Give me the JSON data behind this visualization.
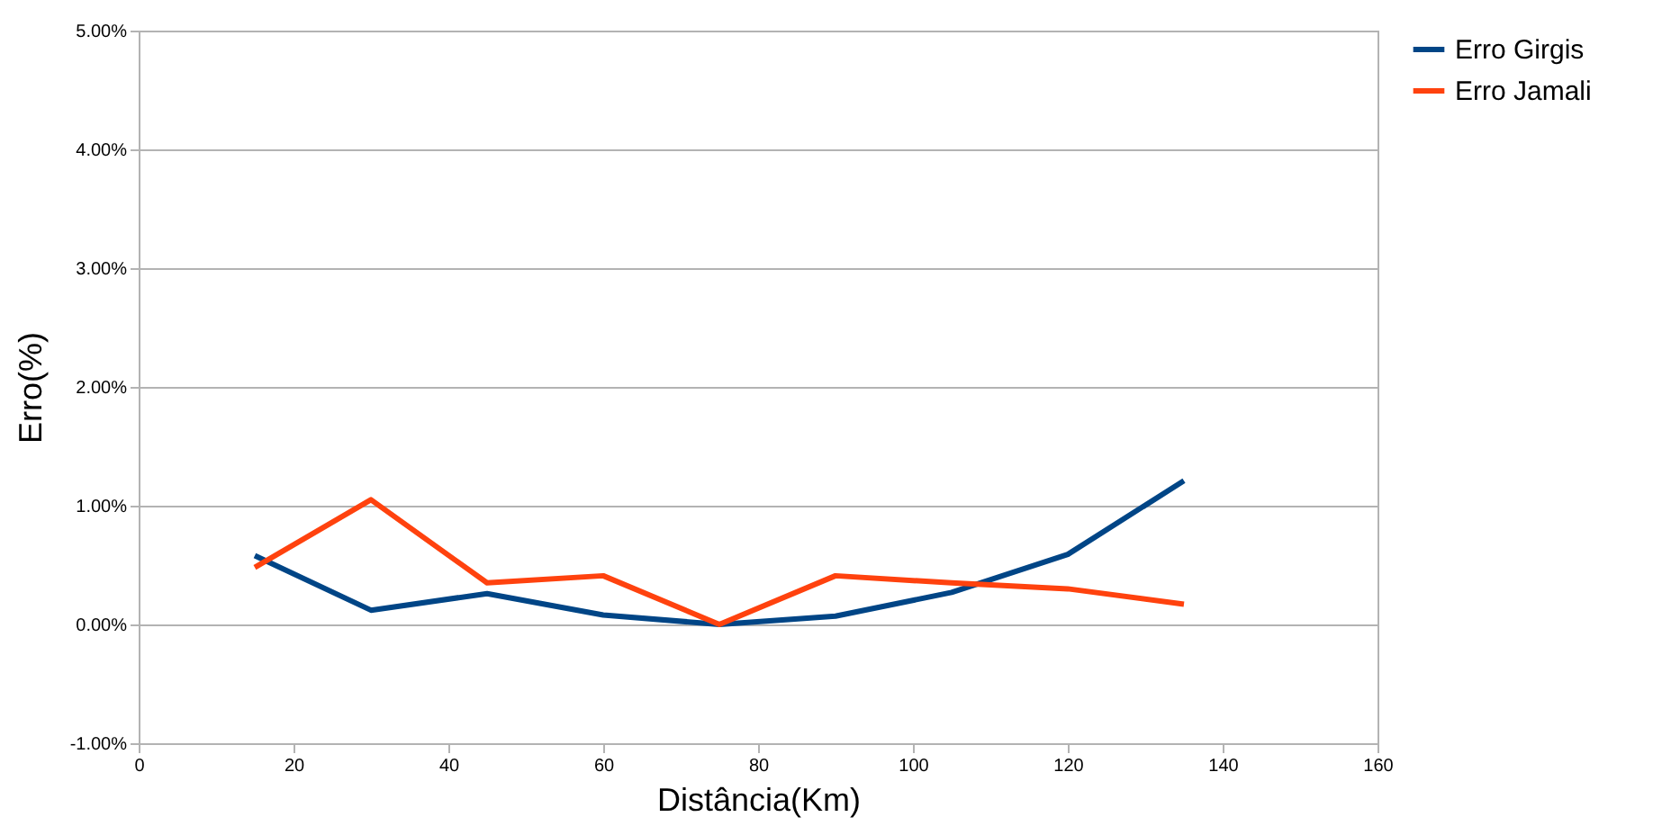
{
  "chart_data": {
    "type": "line",
    "xlabel": "Distância(Km)",
    "ylabel": "Erro(%)",
    "x": [
      15,
      30,
      45,
      60,
      75,
      90,
      105,
      120,
      135
    ],
    "series": [
      {
        "name": "Erro Girgis",
        "color": "#004586",
        "values": [
          0.58,
          0.12,
          0.26,
          0.08,
          0.0,
          0.07,
          0.27,
          0.59,
          1.21
        ]
      },
      {
        "name": "Erro Jamali",
        "color": "#ff420e",
        "values": [
          0.48,
          1.05,
          0.35,
          0.41,
          0.0,
          0.41,
          0.35,
          0.3,
          0.17
        ]
      }
    ],
    "xlim": [
      0,
      160
    ],
    "xticks": [
      0,
      20,
      40,
      60,
      80,
      100,
      120,
      140,
      160
    ],
    "ylim": [
      -1,
      5
    ],
    "yticks": [
      {
        "value": -1,
        "label": "-1.00%"
      },
      {
        "value": 0,
        "label": "0.00%"
      },
      {
        "value": 1,
        "label": "1.00%"
      },
      {
        "value": 2,
        "label": "2.00%"
      },
      {
        "value": 3,
        "label": "3.00%"
      },
      {
        "value": 4,
        "label": "4.00%"
      },
      {
        "value": 5,
        "label": "5.00%"
      }
    ],
    "grid": "y",
    "legend": "right",
    "marker": "none",
    "line_style": "solid"
  }
}
